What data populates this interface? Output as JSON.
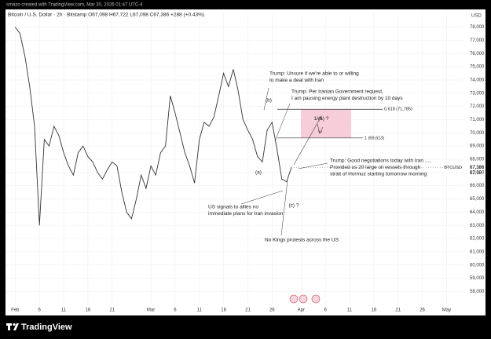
{
  "header": {
    "watermark": "smazo created with TradingView.com, Mar 30, 2026 01:47 UTC-4"
  },
  "footer": {
    "brand": "TradingView"
  },
  "chart_data": {
    "type": "line",
    "title": "Bitcoin / U.S. Dollar · 2h · Bitstamp  O67,098 H67,722 L67,098 C67,386 +288 (+0.43%)",
    "currency": "USD",
    "symbol": "BTCUSD",
    "countdown": "12:18",
    "color": "#333333",
    "x": [
      0,
      1,
      2,
      3,
      4,
      5,
      6,
      7,
      8,
      9,
      10,
      11,
      12,
      13,
      14,
      15,
      16,
      17,
      18,
      19,
      20,
      21,
      22,
      23,
      24,
      25,
      26,
      27,
      28,
      29,
      30,
      31,
      32,
      33,
      34,
      35,
      36,
      37,
      38,
      39,
      40,
      41,
      42,
      43,
      44,
      45,
      46,
      47,
      48,
      49,
      50,
      51,
      52,
      53,
      54,
      55,
      56,
      57
    ],
    "values": [
      78000,
      77500,
      75800,
      73500,
      70500,
      63000,
      69500,
      69000,
      70500,
      69800,
      68500,
      67500,
      66800,
      68500,
      69000,
      68200,
      67800,
      67000,
      66500,
      67200,
      67800,
      67500,
      65500,
      64000,
      63500,
      65000,
      66800,
      65800,
      67500,
      66800,
      68500,
      69000,
      72800,
      71500,
      70000,
      68500,
      67500,
      66200,
      69500,
      70800,
      70500,
      71200,
      72800,
      74500,
      73500,
      74800,
      73200,
      71000,
      70200,
      69500,
      68200,
      67800,
      70200,
      70800,
      68800,
      66500,
      66300,
      67386
    ],
    "xlim": [
      -2,
      92.5
    ],
    "ylim": [
      56600,
      79100
    ],
    "xticks": [
      {
        "value": 0,
        "label": "Feb"
      },
      {
        "value": 5,
        "label": "6"
      },
      {
        "value": 10,
        "label": "11"
      },
      {
        "value": 15,
        "label": "16"
      },
      {
        "value": 20,
        "label": "21"
      },
      {
        "value": 28,
        "label": "Mar"
      },
      {
        "value": 33,
        "label": "6"
      },
      {
        "value": 38,
        "label": "11"
      },
      {
        "value": 43,
        "label": "16"
      },
      {
        "value": 48,
        "label": "21"
      },
      {
        "value": 53,
        "label": "26"
      },
      {
        "value": 59,
        "label": "Apr"
      },
      {
        "value": 64,
        "label": "6"
      },
      {
        "value": 69,
        "label": "11"
      },
      {
        "value": 74,
        "label": "16"
      },
      {
        "value": 79,
        "label": "21"
      },
      {
        "value": 84,
        "label": "26"
      },
      {
        "value": 89,
        "label": "May"
      }
    ],
    "yticks": [
      {
        "value": 58000,
        "label": "58,000"
      },
      {
        "value": 59000,
        "label": "59,000"
      },
      {
        "value": 60000,
        "label": "60,000"
      },
      {
        "value": 61000,
        "label": "61,000"
      },
      {
        "value": 62000,
        "label": "62,000"
      },
      {
        "value": 63000,
        "label": "63,000"
      },
      {
        "value": 64000,
        "label": "64,000"
      },
      {
        "value": 65000,
        "label": "65,000"
      },
      {
        "value": 66000,
        "label": "66,000"
      },
      {
        "value": 67000,
        "label": "67,000"
      },
      {
        "value": 68000,
        "label": "68,000"
      },
      {
        "value": 69000,
        "label": "69,000"
      },
      {
        "value": 70000,
        "label": "70,000"
      },
      {
        "value": 71000,
        "label": "71,000"
      },
      {
        "value": 72000,
        "label": "72,000"
      },
      {
        "value": 73000,
        "label": "73,000"
      },
      {
        "value": 74000,
        "label": "74,000"
      },
      {
        "value": 75000,
        "label": "75,000"
      },
      {
        "value": 76000,
        "label": "76,000"
      },
      {
        "value": 77000,
        "label": "77,000"
      },
      {
        "value": 78000,
        "label": "78,000"
      }
    ],
    "current_price": {
      "value": 67386,
      "label": "67,386"
    },
    "levels": [
      {
        "value": 71785,
        "label": "0.618 (71,785)"
      },
      {
        "value": 69613,
        "label": "1 (69,613)"
      }
    ],
    "target_label": "1/(a) ?",
    "wave_labels": [
      "(b)",
      "(a)",
      "(c) ?"
    ],
    "annotations": [
      {
        "lines": [
          "Trump: Unsure if we're able to or willing",
          "to make a deal with Iran"
        ]
      },
      {
        "lines": [
          "Trump: Per Iranian Government request,",
          "I am pausing energy plant destruction by 10 days"
        ]
      },
      {
        "lines": [
          "Trump: Good negotiations today with Iran ...,",
          "Provided us 20 large oil vessels through",
          "strait of Hormuz starting tomorrow morning"
        ]
      },
      {
        "lines": [
          "US signals to allies no",
          "immediate plans for Iran invasion"
        ]
      },
      {
        "lines": [
          "No Kings protests across the US"
        ]
      }
    ]
  }
}
